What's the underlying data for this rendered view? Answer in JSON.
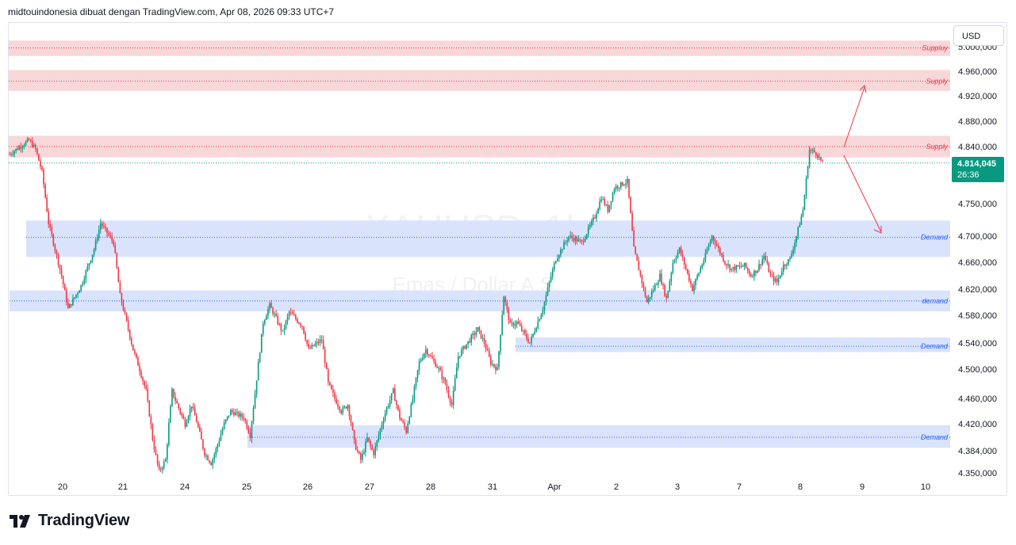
{
  "header": {
    "title": "midtouindonesia dibuat dengan TradingView.com, Apr 08, 2026 09:33 UTC+7"
  },
  "currency_button": "USD",
  "last_price": {
    "value": "4.814,045",
    "countdown": "26:36",
    "color": "#089981"
  },
  "footer": {
    "brand": "TradingView"
  },
  "watermark": {
    "symbol": "XAUUSD, 1h",
    "description": "Emas / Dollar A.S."
  },
  "colors": {
    "up": "#089981",
    "down": "#f23645",
    "supply_zone": "#f8d7d9",
    "demand_zone": "#d9e3fc",
    "supply_text": "#f23645",
    "demand_text": "#2962ff",
    "arrow": "#f23645"
  },
  "chart_data": {
    "type": "candlestick",
    "symbol": "XAUUSD",
    "timeframe": "1h",
    "y_axis": {
      "ticks": [
        4350,
        4384,
        4420,
        4460,
        4500,
        4540,
        4580,
        4620,
        4660,
        4700,
        4750,
        4840,
        4880,
        4920,
        4960,
        5000
      ],
      "tick_labels": [
        "4.350,000",
        "4.384,000",
        "4.420,000",
        "4.460,000",
        "4.500,000",
        "4.540,000",
        "4.580,000",
        "4.620,000",
        "4.660,000",
        "4.700,000",
        "4.750,000",
        "4.840,000",
        "4.880,000",
        "4.920,000",
        "4.960,000",
        "5.000,000"
      ]
    },
    "x_axis": {
      "tick_labels": [
        "20",
        "21",
        "24",
        "25",
        "26",
        "27",
        "28",
        "31",
        "Apr",
        "2",
        "3",
        "7",
        "8",
        "9",
        "10"
      ]
    },
    "zones": [
      {
        "type": "supply",
        "label": "Suppluy",
        "top": 5010,
        "bottom": 4985,
        "level": 4998
      },
      {
        "type": "supply",
        "label": "Supply",
        "top": 4962,
        "bottom": 4928,
        "level": 4944
      },
      {
        "type": "supply",
        "label": "Supply",
        "top": 4857,
        "bottom": 4823,
        "level": 4840
      },
      {
        "type": "demand",
        "label": "Demand",
        "top": 4724,
        "bottom": 4668,
        "level": 4698
      },
      {
        "type": "demand",
        "label": "demand",
        "top": 4618,
        "bottom": 4586,
        "level": 4602
      },
      {
        "type": "demand",
        "label": "Demand",
        "top": 4548,
        "bottom": 4526,
        "level": 4535
      },
      {
        "type": "demand",
        "label": "Demand",
        "top": 4418,
        "bottom": 4388,
        "level": 4402
      }
    ],
    "last_price": 4814.045,
    "price_path": [
      [
        0,
        4828
      ],
      [
        3,
        4850
      ],
      [
        4,
        4836
      ],
      [
        5,
        4800
      ],
      [
        6,
        4720
      ],
      [
        8,
        4640
      ],
      [
        9,
        4590
      ],
      [
        11,
        4625
      ],
      [
        13,
        4680
      ],
      [
        14,
        4720
      ],
      [
        16,
        4690
      ],
      [
        17,
        4610
      ],
      [
        19,
        4530
      ],
      [
        21,
        4470
      ],
      [
        22,
        4400
      ],
      [
        23,
        4352
      ],
      [
        24,
        4370
      ],
      [
        25,
        4470
      ],
      [
        27,
        4420
      ],
      [
        28,
        4450
      ],
      [
        30,
        4380
      ],
      [
        31,
        4365
      ],
      [
        33,
        4420
      ],
      [
        34,
        4440
      ],
      [
        36,
        4430
      ],
      [
        37,
        4405
      ],
      [
        39,
        4570
      ],
      [
        40,
        4595
      ],
      [
        42,
        4555
      ],
      [
        43,
        4585
      ],
      [
        45,
        4565
      ],
      [
        46,
        4530
      ],
      [
        48,
        4545
      ],
      [
        49,
        4480
      ],
      [
        51,
        4440
      ],
      [
        52,
        4450
      ],
      [
        53,
        4395
      ],
      [
        54,
        4370
      ],
      [
        55,
        4400
      ],
      [
        56,
        4380
      ],
      [
        58,
        4445
      ],
      [
        59,
        4470
      ],
      [
        60,
        4430
      ],
      [
        61,
        4410
      ],
      [
        63,
        4510
      ],
      [
        64,
        4530
      ],
      [
        66,
        4500
      ],
      [
        67,
        4480
      ],
      [
        68,
        4450
      ],
      [
        69,
        4520
      ],
      [
        70,
        4535
      ],
      [
        72,
        4560
      ],
      [
        73,
        4540
      ],
      [
        74,
        4510
      ],
      [
        75,
        4500
      ],
      [
        76,
        4610
      ],
      [
        77,
        4565
      ],
      [
        78,
        4570
      ],
      [
        80,
        4540
      ],
      [
        82,
        4590
      ],
      [
        83,
        4630
      ],
      [
        84,
        4665
      ],
      [
        86,
        4700
      ],
      [
        88,
        4690
      ],
      [
        90,
        4730
      ],
      [
        91,
        4760
      ],
      [
        92,
        4740
      ],
      [
        93,
        4775
      ],
      [
        95,
        4785
      ],
      [
        96,
        4680
      ],
      [
        97,
        4640
      ],
      [
        98,
        4600
      ],
      [
        99,
        4620
      ],
      [
        100,
        4640
      ],
      [
        101,
        4605
      ],
      [
        102,
        4660
      ],
      [
        103,
        4680
      ],
      [
        104,
        4650
      ],
      [
        105,
        4620
      ],
      [
        107,
        4670
      ],
      [
        108,
        4700
      ],
      [
        109,
        4680
      ],
      [
        110,
        4660
      ],
      [
        111,
        4650
      ],
      [
        113,
        4655
      ],
      [
        114,
        4640
      ],
      [
        115,
        4650
      ],
      [
        116,
        4670
      ],
      [
        117,
        4640
      ],
      [
        118,
        4630
      ],
      [
        119,
        4655
      ],
      [
        120,
        4665
      ],
      [
        121,
        4700
      ],
      [
        122,
        4740
      ],
      [
        123,
        4835
      ],
      [
        124,
        4830
      ],
      [
        125,
        4814
      ]
    ]
  }
}
